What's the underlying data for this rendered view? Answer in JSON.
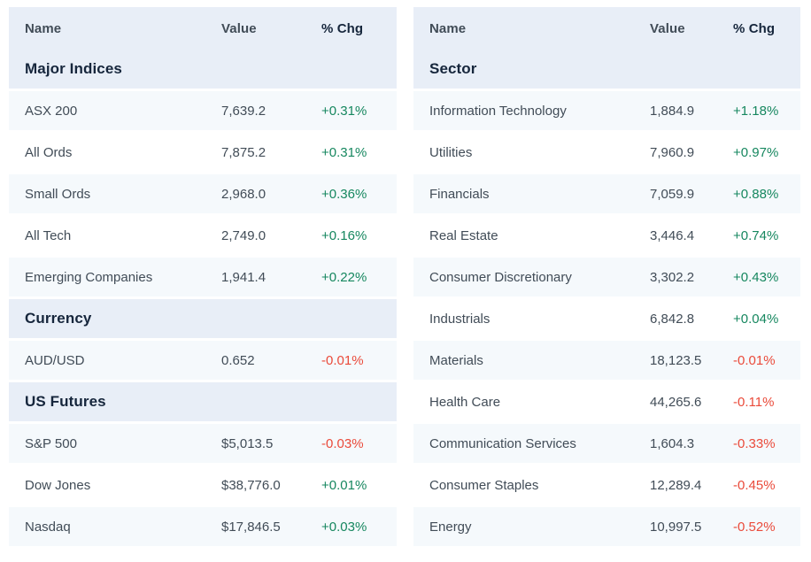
{
  "colors": {
    "header_bg": "#e8eef7",
    "alt_row_bg": "#f5f9fc",
    "row_bg": "#ffffff",
    "heading_text": "#16263c",
    "body_text": "#414c57",
    "positive": "#16875f",
    "negative": "#ea4a3a"
  },
  "tables": [
    {
      "name": "markets",
      "columns": [
        "Name",
        "Value",
        "% Chg"
      ],
      "rows": [
        {
          "type": "section",
          "label": "Major Indices"
        },
        {
          "type": "data",
          "name": "ASX 200",
          "value": "7,639.2",
          "chg": "+0.31%",
          "direction": "up"
        },
        {
          "type": "data",
          "name": "All Ords",
          "value": "7,875.2",
          "chg": "+0.31%",
          "direction": "up"
        },
        {
          "type": "data",
          "name": "Small Ords",
          "value": "2,968.0",
          "chg": "+0.36%",
          "direction": "up"
        },
        {
          "type": "data",
          "name": "All Tech",
          "value": "2,749.0",
          "chg": "+0.16%",
          "direction": "up"
        },
        {
          "type": "data",
          "name": "Emerging Companies",
          "value": "1,941.4",
          "chg": "+0.22%",
          "direction": "up"
        },
        {
          "type": "section",
          "label": "Currency"
        },
        {
          "type": "data",
          "name": "AUD/USD",
          "value": "0.652",
          "chg": "-0.01%",
          "direction": "down"
        },
        {
          "type": "section",
          "label": "US Futures"
        },
        {
          "type": "data",
          "name": "S&P 500",
          "value": "$5,013.5",
          "chg": "-0.03%",
          "direction": "down"
        },
        {
          "type": "data",
          "name": "Dow Jones",
          "value": "$38,776.0",
          "chg": "+0.01%",
          "direction": "up"
        },
        {
          "type": "data",
          "name": "Nasdaq",
          "value": "$17,846.5",
          "chg": "+0.03%",
          "direction": "up"
        }
      ]
    },
    {
      "name": "sectors",
      "columns": [
        "Name",
        "Value",
        "% Chg"
      ],
      "rows": [
        {
          "type": "section",
          "label": "Sector"
        },
        {
          "type": "data",
          "name": "Information Technology",
          "value": "1,884.9",
          "chg": "+1.18%",
          "direction": "up"
        },
        {
          "type": "data",
          "name": "Utilities",
          "value": "7,960.9",
          "chg": "+0.97%",
          "direction": "up"
        },
        {
          "type": "data",
          "name": "Financials",
          "value": "7,059.9",
          "chg": "+0.88%",
          "direction": "up"
        },
        {
          "type": "data",
          "name": "Real Estate",
          "value": "3,446.4",
          "chg": "+0.74%",
          "direction": "up"
        },
        {
          "type": "data",
          "name": "Consumer Discretionary",
          "value": "3,302.2",
          "chg": "+0.43%",
          "direction": "up"
        },
        {
          "type": "data",
          "name": "Industrials",
          "value": "6,842.8",
          "chg": "+0.04%",
          "direction": "up"
        },
        {
          "type": "data",
          "name": "Materials",
          "value": "18,123.5",
          "chg": "-0.01%",
          "direction": "down"
        },
        {
          "type": "data",
          "name": "Health Care",
          "value": "44,265.6",
          "chg": "-0.11%",
          "direction": "down"
        },
        {
          "type": "data",
          "name": "Communication Services",
          "value": "1,604.3",
          "chg": "-0.33%",
          "direction": "down"
        },
        {
          "type": "data",
          "name": "Consumer Staples",
          "value": "12,289.4",
          "chg": "-0.45%",
          "direction": "down"
        },
        {
          "type": "data",
          "name": "Energy",
          "value": "10,997.5",
          "chg": "-0.52%",
          "direction": "down"
        }
      ]
    }
  ]
}
